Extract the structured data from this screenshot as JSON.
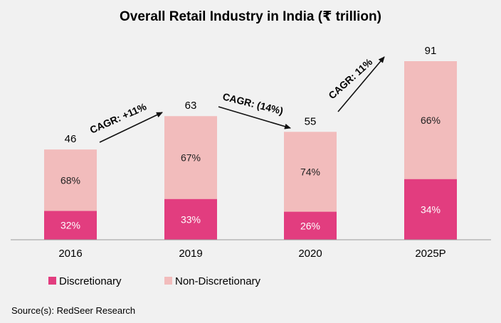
{
  "chart_data": {
    "type": "bar",
    "stacked": true,
    "title": "Overall Retail Industry in India (₹ trillion)",
    "categories": [
      "2016",
      "2019",
      "2020",
      "2025P"
    ],
    "totals": [
      46,
      63,
      55,
      91
    ],
    "series": [
      {
        "name": "Discretionary",
        "color": "#e23d7f",
        "share": [
          32,
          33,
          26,
          34
        ],
        "share_labels": [
          "32%",
          "33%",
          "26%",
          "34%"
        ]
      },
      {
        "name": "Non-Discretionary",
        "color": "#f2bcbc",
        "share": [
          68,
          67,
          74,
          66
        ],
        "share_labels": [
          "68%",
          "67%",
          "74%",
          "66%"
        ]
      }
    ],
    "annotations": [
      {
        "text": "CAGR: +11%",
        "from": "2016",
        "to": "2019"
      },
      {
        "text": "CAGR: (14%)",
        "from": "2019",
        "to": "2020"
      },
      {
        "text": "CAGR: 11%",
        "from": "2020",
        "to": "2025P"
      }
    ],
    "ylim": [
      0,
      91
    ],
    "grid": false,
    "legend_position": "bottom-left"
  },
  "source": "Source(s): RedSeer Research"
}
